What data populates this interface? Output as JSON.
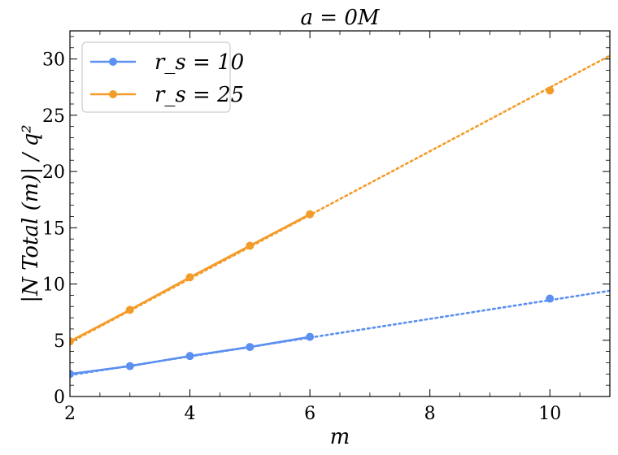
{
  "chart_data": {
    "type": "line",
    "title": "a = 0M",
    "xlabel": "m",
    "ylabel": "|N Total (m)| / q²",
    "xlim": [
      2,
      11
    ],
    "ylim": [
      0,
      32.5
    ],
    "xticks": [
      2,
      4,
      6,
      8,
      10
    ],
    "yticks": [
      0,
      5,
      10,
      15,
      20,
      25,
      30
    ],
    "legend_position": "top-left",
    "grid": false,
    "series": [
      {
        "name": "r_s = 10",
        "color": "#5b8ff0",
        "x": [
          2,
          3,
          4,
          5,
          6,
          10
        ],
        "y": [
          2.0,
          2.7,
          3.6,
          4.4,
          5.3,
          8.7
        ],
        "fit_x": [
          2,
          11
        ],
        "fit_y": [
          1.9,
          9.4
        ]
      },
      {
        "name": "r_s = 25",
        "color": "#f39c29",
        "x": [
          2,
          3,
          4,
          5,
          6,
          10
        ],
        "y": [
          4.9,
          7.7,
          10.6,
          13.4,
          16.2,
          27.2
        ],
        "fit_x": [
          2,
          11
        ],
        "fit_y": [
          4.8,
          30.3
        ]
      }
    ]
  }
}
